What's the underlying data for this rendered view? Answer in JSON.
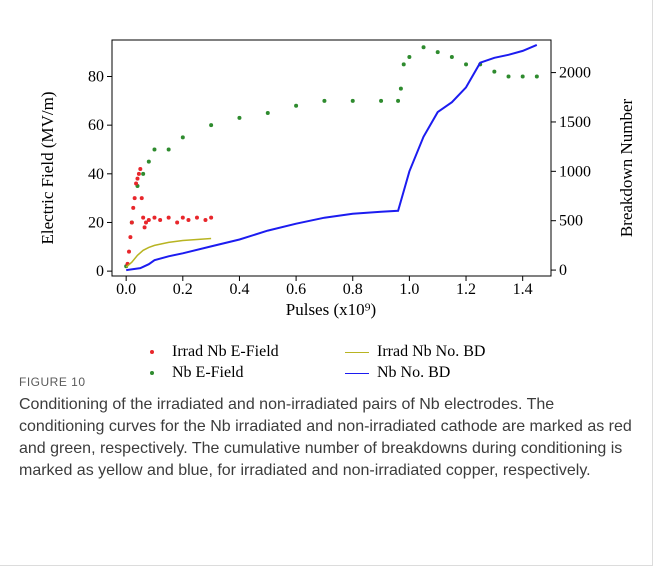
{
  "figure": {
    "label": "FIGURE 10",
    "caption": "Conditioning of the irradiated and non-irradiated pairs of Nb electrodes. The conditioning curves for the Nb irradiated and non-irradiated cathode are marked as red and green, respectively. The cumulative number of breakdowns during conditioning is marked as yellow and blue, for irradiated and non-irradiated copper, respectively."
  },
  "chart_data": {
    "type": "line",
    "xlabel": "Pulses (x10⁹)",
    "ylabel": "Electric Field (MV/m)",
    "y2label": "Breakdown Number",
    "xlim": [
      -0.05,
      1.5
    ],
    "ylim": [
      -2,
      95
    ],
    "y2lim": [
      -60,
      2330
    ],
    "xticks": [
      "0.0",
      "0.2",
      "0.4",
      "0.6",
      "0.8",
      "1.0",
      "1.2",
      "1.4"
    ],
    "yticks": [
      "0",
      "20",
      "40",
      "60",
      "80"
    ],
    "y2ticks": [
      "0",
      "500",
      "1000",
      "1500",
      "2000"
    ],
    "grid": false,
    "legend_position": "bottom",
    "colors": {
      "irrad_efield": "#e8262b",
      "nb_efield": "#2e8b2e",
      "irrad_bd": "#b8b422",
      "nb_bd": "#1c1cf0"
    },
    "series": [
      {
        "name": "Irrad Nb E-Field",
        "axis": "left",
        "style": "scatter",
        "x": [
          0.005,
          0.01,
          0.015,
          0.02,
          0.025,
          0.03,
          0.035,
          0.04,
          0.045,
          0.05,
          0.055,
          0.06,
          0.065,
          0.07,
          0.08,
          0.1,
          0.12,
          0.15,
          0.18,
          0.2,
          0.22,
          0.25,
          0.28,
          0.3
        ],
        "y": [
          3,
          8,
          14,
          20,
          26,
          30,
          36,
          38,
          40,
          42,
          30,
          22,
          18,
          20,
          21,
          22,
          21,
          22,
          20,
          22,
          21,
          22,
          21,
          22
        ]
      },
      {
        "name": "Nb E-Field",
        "axis": "left",
        "style": "scatter",
        "x": [
          0.0,
          0.02,
          0.04,
          0.06,
          0.08,
          0.1,
          0.15,
          0.2,
          0.3,
          0.4,
          0.5,
          0.6,
          0.7,
          0.8,
          0.9,
          0.96,
          0.97,
          0.98,
          1.0,
          1.05,
          1.1,
          1.15,
          1.2,
          1.25,
          1.3,
          1.35,
          1.4,
          1.45
        ],
        "y": [
          2,
          20,
          35,
          40,
          45,
          50,
          50,
          55,
          60,
          63,
          65,
          68,
          70,
          70,
          70,
          70,
          75,
          85,
          88,
          92,
          90,
          88,
          85,
          85,
          82,
          80,
          80,
          80
        ]
      },
      {
        "name": "Irrad Nb No. BD",
        "axis": "right",
        "style": "line",
        "x": [
          0.0,
          0.02,
          0.04,
          0.06,
          0.08,
          0.1,
          0.15,
          0.2,
          0.25,
          0.3
        ],
        "y": [
          30,
          80,
          150,
          200,
          230,
          250,
          280,
          300,
          310,
          320
        ]
      },
      {
        "name": "Nb No. BD",
        "axis": "right",
        "style": "line",
        "x": [
          0.0,
          0.05,
          0.08,
          0.1,
          0.15,
          0.2,
          0.3,
          0.4,
          0.5,
          0.6,
          0.7,
          0.8,
          0.9,
          0.96,
          0.97,
          1.0,
          1.05,
          1.1,
          1.15,
          1.2,
          1.25,
          1.3,
          1.35,
          1.4,
          1.45
        ],
        "y": [
          0,
          20,
          60,
          100,
          140,
          170,
          240,
          310,
          400,
          470,
          530,
          570,
          590,
          600,
          700,
          1000,
          1350,
          1600,
          1700,
          1850,
          2100,
          2150,
          2180,
          2220,
          2280
        ]
      }
    ]
  }
}
